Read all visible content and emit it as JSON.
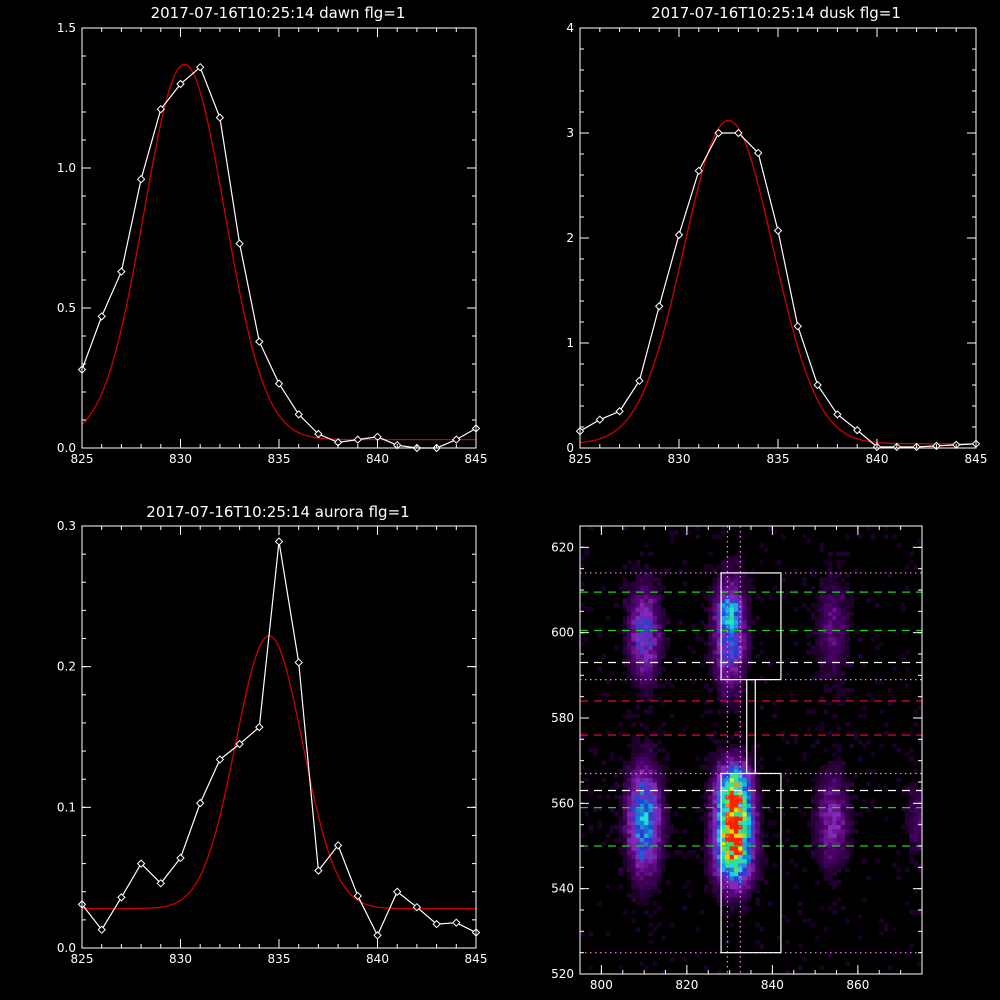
{
  "chart_data": [
    {
      "type": "line",
      "title": "2017-07-16T10:25:14 dawn flg=1",
      "xlim": [
        825,
        845
      ],
      "ylim": [
        0,
        1.5
      ],
      "xticks": [
        "825",
        "830",
        "835",
        "840",
        "845"
      ],
      "yticks": [
        "0.0",
        "0.5",
        "1.0",
        "1.5"
      ],
      "grid": false,
      "series": [
        {
          "kind": "observed",
          "color": "#ffffff",
          "marker": "diamond",
          "x": [
            825,
            826,
            827,
            828,
            829,
            830,
            831,
            832,
            833,
            834,
            835,
            836,
            837,
            838,
            839,
            840,
            841,
            842,
            843,
            844,
            845
          ],
          "y": [
            0.28,
            0.47,
            0.63,
            0.96,
            1.21,
            1.3,
            1.36,
            1.18,
            0.73,
            0.38,
            0.23,
            0.12,
            0.05,
            0.02,
            0.03,
            0.04,
            0.01,
            0.0,
            0.0,
            0.03,
            0.07
          ]
        },
        {
          "kind": "gaussian-fit",
          "color": "#cc0000",
          "amplitude": 1.34,
          "center": 830.2,
          "sigma": 2.05,
          "offset": 0.03
        }
      ]
    },
    {
      "type": "line",
      "title": "2017-07-16T10:25:14 dusk flg=1",
      "xlim": [
        825,
        845
      ],
      "ylim": [
        0,
        4
      ],
      "xticks": [
        "825",
        "830",
        "835",
        "840",
        "845"
      ],
      "yticks": [
        "0",
        "1",
        "2",
        "3",
        "4"
      ],
      "grid": false,
      "series": [
        {
          "kind": "observed",
          "color": "#ffffff",
          "marker": "diamond",
          "x": [
            825,
            826,
            827,
            828,
            829,
            830,
            831,
            832,
            833,
            834,
            835,
            836,
            837,
            838,
            839,
            840,
            841,
            842,
            843,
            844,
            845
          ],
          "y": [
            0.16,
            0.27,
            0.35,
            0.64,
            1.35,
            2.03,
            2.64,
            3.0,
            3.0,
            2.81,
            2.07,
            1.16,
            0.6,
            0.32,
            0.17,
            0.01,
            0.01,
            0.01,
            0.02,
            0.03,
            0.04
          ]
        },
        {
          "kind": "gaussian-fit",
          "color": "#cc0000",
          "amplitude": 3.08,
          "center": 832.5,
          "sigma": 2.25,
          "offset": 0.04
        }
      ]
    },
    {
      "type": "line",
      "title": "2017-07-16T10:25:14 aurora flg=1",
      "xlim": [
        825,
        845
      ],
      "ylim": [
        0,
        0.3
      ],
      "xticks": [
        "825",
        "830",
        "835",
        "840",
        "845"
      ],
      "yticks": [
        "0.0",
        "0.1",
        "0.2",
        "0.3"
      ],
      "grid": false,
      "series": [
        {
          "kind": "observed",
          "color": "#ffffff",
          "marker": "diamond",
          "x": [
            825,
            826,
            827,
            828,
            829,
            830,
            831,
            832,
            833,
            834,
            835,
            836,
            837,
            838,
            839,
            840,
            841,
            842,
            843,
            844,
            845
          ],
          "y": [
            0.031,
            0.013,
            0.036,
            0.06,
            0.046,
            0.064,
            0.103,
            0.134,
            0.145,
            0.157,
            0.289,
            0.203,
            0.055,
            0.073,
            0.037,
            0.009,
            0.04,
            0.029,
            0.017,
            0.018,
            0.011
          ]
        },
        {
          "kind": "gaussian-fit",
          "color": "#cc0000",
          "amplitude": 0.194,
          "center": 834.5,
          "sigma": 1.7,
          "offset": 0.028
        }
      ]
    },
    {
      "type": "heatmap",
      "title": "",
      "xlim": [
        795,
        875
      ],
      "ylim": [
        520,
        625
      ],
      "xticks": [
        "800",
        "820",
        "840",
        "860"
      ],
      "yticks": [
        "520",
        "540",
        "560",
        "580",
        "600",
        "620"
      ],
      "colormap": [
        "#000000",
        "#4a0068",
        "#8a2ab8",
        "#1f3fd0",
        "#1a9fe0",
        "#22e0e0",
        "#30e070",
        "#f0f000",
        "#ff2000"
      ],
      "blobs": [
        {
          "x": 831,
          "y": 556,
          "sx": 2.6,
          "sy": 6.5,
          "peak": 1.0
        },
        {
          "x": 831,
          "y": 547,
          "sx": 2.8,
          "sy": 5.0,
          "peak": 0.45
        },
        {
          "x": 831,
          "y": 565,
          "sx": 2.5,
          "sy": 3.5,
          "peak": 0.35
        },
        {
          "x": 810,
          "y": 556,
          "sx": 2.5,
          "sy": 8.0,
          "peak": 0.5
        },
        {
          "x": 810,
          "y": 600,
          "sx": 2.4,
          "sy": 7.0,
          "peak": 0.32
        },
        {
          "x": 830,
          "y": 600,
          "sx": 2.4,
          "sy": 8.0,
          "peak": 0.4
        },
        {
          "x": 830,
          "y": 605,
          "sx": 1.5,
          "sy": 2.0,
          "peak": 0.35
        },
        {
          "x": 854,
          "y": 556,
          "sx": 2.6,
          "sy": 7.0,
          "peak": 0.22
        },
        {
          "x": 854,
          "y": 601,
          "sx": 2.5,
          "sy": 8.0,
          "peak": 0.14
        },
        {
          "x": 874,
          "y": 556,
          "sx": 2.0,
          "sy": 6.0,
          "peak": 0.1
        }
      ],
      "hlines": [
        {
          "y": 614,
          "style": "dotted",
          "color": "#ff80ff"
        },
        {
          "y": 609.5,
          "style": "dashed",
          "color": "#20d020"
        },
        {
          "y": 600.5,
          "style": "dashed",
          "color": "#20d020"
        },
        {
          "y": 593,
          "style": "dashed",
          "color": "#ffffff"
        },
        {
          "y": 589,
          "style": "dotted",
          "color": "#ff80ff"
        },
        {
          "y": 584,
          "style": "dashed",
          "color": "#ff0040"
        },
        {
          "y": 576,
          "style": "dashed",
          "color": "#ff0040"
        },
        {
          "y": 567,
          "style": "dotted",
          "color": "#ff80ff"
        },
        {
          "y": 563,
          "style": "dashed",
          "color": "#ffffff"
        },
        {
          "y": 559,
          "style": "dashed",
          "color": "#20d020"
        },
        {
          "y": 550,
          "style": "dashed",
          "color": "#20d020"
        },
        {
          "y": 525,
          "style": "dotted",
          "color": "#ff80ff"
        }
      ],
      "vlines": [
        {
          "x": 829.5,
          "style": "dotted",
          "color": "#ff80ff"
        },
        {
          "x": 832.5,
          "style": "dotted",
          "color": "#ff80ff"
        }
      ],
      "boxes": [
        {
          "x0": 828,
          "x1": 842,
          "y0": 589,
          "y1": 614,
          "color": "#ffffff"
        },
        {
          "x0": 828,
          "x1": 842,
          "y0": 525,
          "y1": 567,
          "color": "#ffffff"
        },
        {
          "x0": 834,
          "x1": 836,
          "y0": 567,
          "y1": 589,
          "color": "#ffffff"
        }
      ]
    }
  ]
}
